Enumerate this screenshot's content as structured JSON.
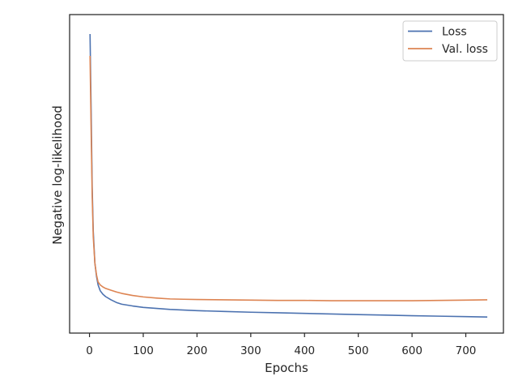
{
  "chart_data": {
    "type": "line",
    "xlabel": "Epochs",
    "ylabel": "Negative log-likelihood",
    "xlim": [
      -37,
      770
    ],
    "ylim": [
      0,
      1
    ],
    "xticks": [
      0,
      100,
      200,
      300,
      400,
      500,
      600,
      700
    ],
    "yticks": [],
    "grid": false,
    "legend_position": "top-right",
    "series": [
      {
        "name": "Loss",
        "color": "#4c72b0",
        "x": [
          1,
          3,
          5,
          7,
          10,
          13,
          16,
          20,
          25,
          30,
          40,
          50,
          60,
          80,
          100,
          125,
          150,
          175,
          200,
          250,
          300,
          350,
          400,
          450,
          500,
          550,
          600,
          650,
          700,
          740
        ],
        "y": [
          0.975,
          0.72,
          0.45,
          0.3,
          0.19,
          0.145,
          0.115,
          0.095,
          0.083,
          0.075,
          0.064,
          0.055,
          0.049,
          0.043,
          0.038,
          0.0345,
          0.031,
          0.029,
          0.027,
          0.024,
          0.0215,
          0.0195,
          0.0175,
          0.0155,
          0.0135,
          0.0115,
          0.0095,
          0.008,
          0.0065,
          0.005
        ]
      },
      {
        "name": "Val. loss",
        "color": "#dd8452",
        "x": [
          1,
          3,
          5,
          7,
          10,
          13,
          16,
          20,
          25,
          30,
          40,
          50,
          60,
          80,
          100,
          125,
          150,
          175,
          200,
          250,
          300,
          350,
          400,
          450,
          500,
          550,
          600,
          650,
          700,
          740
        ],
        "y": [
          0.9,
          0.65,
          0.42,
          0.28,
          0.19,
          0.15,
          0.125,
          0.115,
          0.108,
          0.103,
          0.097,
          0.091,
          0.086,
          0.079,
          0.074,
          0.07,
          0.067,
          0.066,
          0.065,
          0.064,
          0.063,
          0.062,
          0.062,
          0.061,
          0.061,
          0.061,
          0.061,
          0.062,
          0.063,
          0.064
        ]
      }
    ]
  }
}
